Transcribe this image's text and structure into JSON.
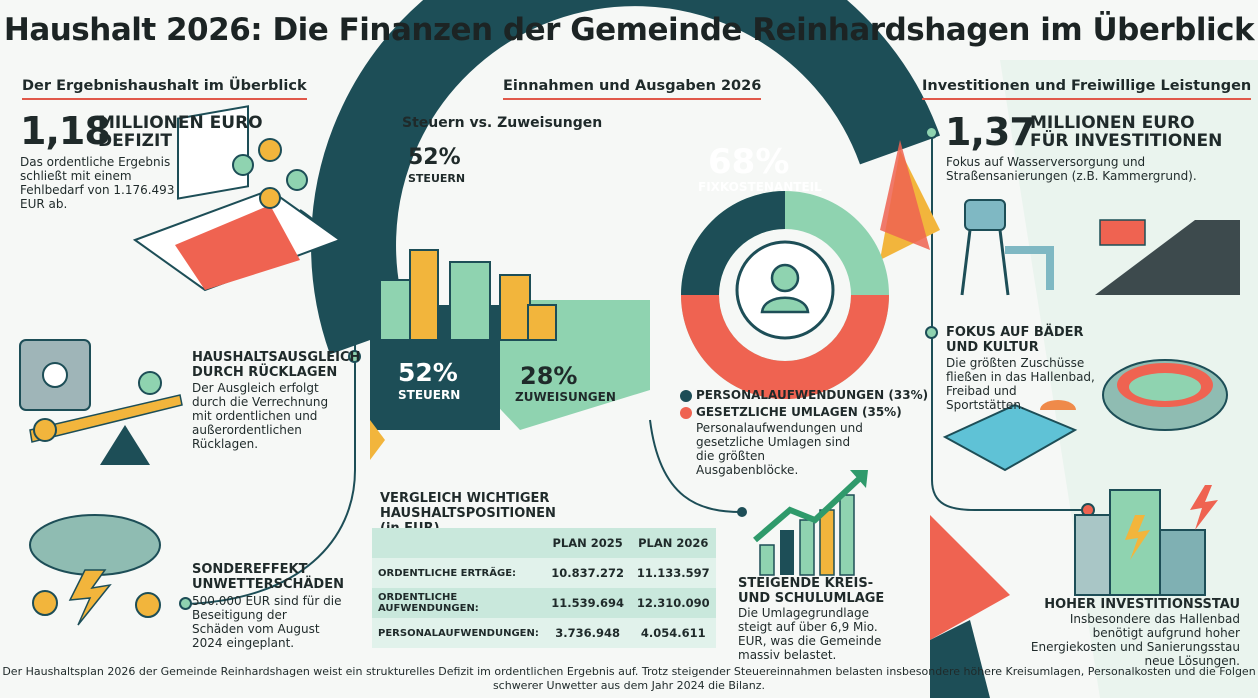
{
  "title": "Haushalt 2026: Die Finanzen der Gemeinde Reinhardshagen im Überblick",
  "left": {
    "section": "Der Ergebnishaushalt im Überblick",
    "deficit_value": "1,18",
    "deficit_label_1": "MILLIONEN EURO",
    "deficit_label_2": "DEFIZIT",
    "deficit_text": "Das ordentliche Ergebnis schließt mit einem Fehlbedarf von 1.176.493 EUR ab.",
    "reserves_head": "HAUSHALTSAUSGLEICH DURCH RÜCKLAGEN",
    "reserves_text": "Der Ausgleich erfolgt durch die Verrechnung mit ordentlichen und außerordentlichen Rücklagen.",
    "storm_head": "SONDEREFFEKT UNWETTERSCHÄDEN",
    "storm_text": "500.000 EUR sind für die Beseitigung der Schäden vom August 2024 eingeplant."
  },
  "center": {
    "section": "Einnahmen und Ausgaben 2026",
    "subtitle": "Steuern vs. Zuweisungen",
    "top_pct": "52%",
    "top_label": "STEUERN",
    "tax_pct": "52%",
    "tax_label": "STEUERN",
    "grants_pct": "28%",
    "grants_label": "ZUWEISUNGEN",
    "fixed_pct": "68%",
    "fixed_label": "FIXKOSTENANTEIL",
    "legend": [
      {
        "label": "PERSONALAUFWENDUNGEN (33%)",
        "color": "#1d4e57"
      },
      {
        "label": "GESETZLICHE UMLAGEN (35%)",
        "color": "#ef6351"
      }
    ],
    "legend_text": "Personalaufwendungen und gesetzliche Umlagen sind die größten Ausgabenblöcke.",
    "table_title": "VERGLEICH WICHTIGER HAUSHALTSPOSITIONEN (in EUR)",
    "table_headers": [
      "",
      "PLAN 2025",
      "PLAN 2026"
    ],
    "table_rows": [
      [
        "ORDENTLICHE ERTRÄGE:",
        "10.837.272",
        "11.133.597"
      ],
      [
        "ORDENTLICHE AUFWENDUNGEN:",
        "11.539.694",
        "12.310.090"
      ],
      [
        "PERSONALAUFWENDUNGEN:",
        "3.736.948",
        "4.054.611"
      ]
    ],
    "levy_head": "STEIGENDE KREIS- UND SCHULUMLAGE",
    "levy_text": "Die Umlagegrundlage steigt auf über 6,9 Mio. EUR, was die Gemeinde massiv belastet."
  },
  "right": {
    "section": "Investitionen und Freiwillige Leistungen",
    "invest_value": "1,37",
    "invest_label_1": "MILLIONEN EURO",
    "invest_label_2": "FÜR INVESTITIONEN",
    "invest_text": "Fokus auf Wasserversorgung und Straßensanierungen (z.B. Kammergrund).",
    "baths_head": "FOKUS AUF BÄDER UND KULTUR",
    "baths_text": "Die größten Zuschüsse fließen in das Hallenbad, Freibad und Sportstätten.",
    "backlog_head": "HOHER INVESTITIONSSTAU",
    "backlog_text": "Insbesondere das Hallenbad benötigt aufgrund hoher Energiekosten und Sanierungsstau neue Lösungen."
  },
  "footer": "Der Haushaltsplan 2026 der Gemeinde Reinhardshagen weist ein strukturelles Defizit im ordentlichen Ergebnis auf. Trotz steigender Steuereinnahmen belasten insbesondere höhere Kreisumlagen, Personalkosten und die Folgen schwerer Unwetter aus dem Jahr 2024 die Bilanz.",
  "colors": {
    "dark_teal": "#1d4e57",
    "mint": "#8fd3b0",
    "coral": "#ef6351",
    "yellow": "#f2b53c"
  }
}
